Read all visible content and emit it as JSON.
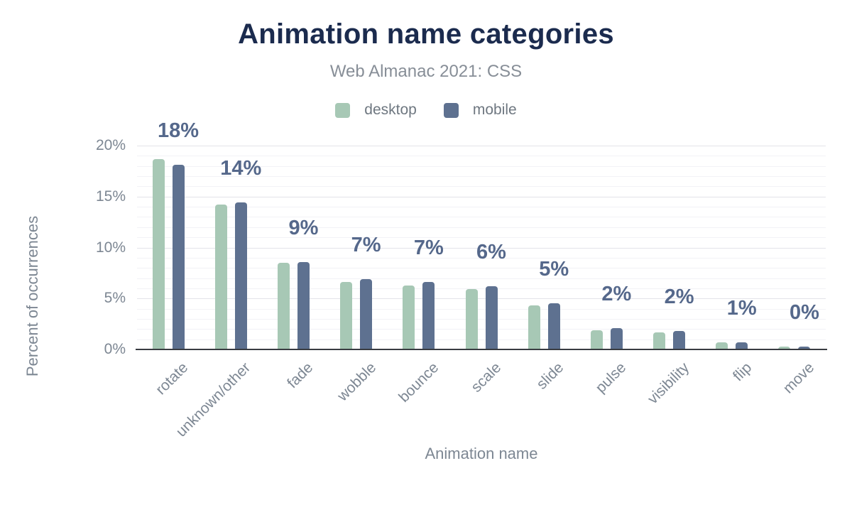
{
  "header": {
    "title": "Animation name categories",
    "subtitle": "Web Almanac 2021: CSS"
  },
  "legend": {
    "items": [
      {
        "label": "desktop",
        "color": "#a7c8b5"
      },
      {
        "label": "mobile",
        "color": "#5e7190"
      }
    ]
  },
  "chart_data": {
    "type": "bar",
    "title": "Animation name categories",
    "subtitle": "Web Almanac 2021: CSS",
    "xlabel": "Animation name",
    "ylabel": "Percent of occurrences",
    "categories": [
      "rotate",
      "unknown/other",
      "fade",
      "wobble",
      "bounce",
      "scale",
      "slide",
      "pulse",
      "visibility",
      "flip",
      "move"
    ],
    "series": [
      {
        "name": "desktop",
        "color": "#a7c8b5",
        "values": [
          18.7,
          14.2,
          8.5,
          6.6,
          6.3,
          5.9,
          4.3,
          1.9,
          1.7,
          0.7,
          0.3
        ]
      },
      {
        "name": "mobile",
        "color": "#5e7190",
        "values": [
          18.1,
          14.4,
          8.6,
          6.9,
          6.6,
          6.2,
          4.5,
          2.1,
          1.8,
          0.7,
          0.3
        ]
      }
    ],
    "bar_labels": [
      "18%",
      "14%",
      "9%",
      "7%",
      "7%",
      "6%",
      "5%",
      "2%",
      "2%",
      "1%",
      "0%"
    ],
    "bar_labels_annotate_series": "mobile",
    "y_ticks": [
      "0%",
      "5%",
      "10%",
      "15%",
      "20%"
    ],
    "y_tick_values": [
      0,
      5,
      10,
      15,
      20
    ],
    "ylim": [
      0,
      20
    ],
    "grid": {
      "horizontal": true,
      "minor_step_pct": 1,
      "major_step_pct": 5
    },
    "legend_position": "top"
  },
  "colors": {
    "title": "#1b2b4e",
    "subtitle": "#878e97",
    "axis_text": "#7d8793",
    "bar_label": "#55688b",
    "axis_line": "#393c41",
    "grid_minor": "#f2f2f6",
    "grid_major": "#e3e3e9",
    "background": "#ffffff"
  }
}
